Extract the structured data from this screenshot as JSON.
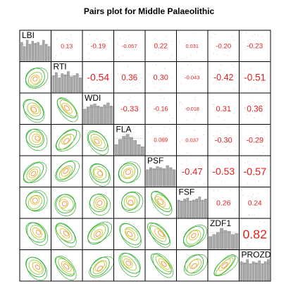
{
  "title": "Pairs plot for Middle Palaeolithic",
  "chart_data": {
    "type": "pairs",
    "variables": [
      "LBI",
      "RTI",
      "WDI",
      "FLA",
      "PSF",
      "FSF",
      "ZDF1",
      "PROZD"
    ],
    "upper_correlations": [
      {
        "row": 0,
        "col": 1,
        "value": "0.13"
      },
      {
        "row": 0,
        "col": 2,
        "value": "-0.19"
      },
      {
        "row": 0,
        "col": 3,
        "value": "-0.057"
      },
      {
        "row": 0,
        "col": 4,
        "value": "0.22"
      },
      {
        "row": 0,
        "col": 5,
        "value": "0.031"
      },
      {
        "row": 0,
        "col": 6,
        "value": "-0.20"
      },
      {
        "row": 0,
        "col": 7,
        "value": "-0.23"
      },
      {
        "row": 1,
        "col": 2,
        "value": "-0.54"
      },
      {
        "row": 1,
        "col": 3,
        "value": "0.36"
      },
      {
        "row": 1,
        "col": 4,
        "value": "0.30"
      },
      {
        "row": 1,
        "col": 5,
        "value": "-0.043"
      },
      {
        "row": 1,
        "col": 6,
        "value": "-0.42"
      },
      {
        "row": 1,
        "col": 7,
        "value": "-0.51"
      },
      {
        "row": 2,
        "col": 3,
        "value": "-0.33"
      },
      {
        "row": 2,
        "col": 4,
        "value": "-0.16"
      },
      {
        "row": 2,
        "col": 5,
        "value": "-0.018"
      },
      {
        "row": 2,
        "col": 6,
        "value": "0.31"
      },
      {
        "row": 2,
        "col": 7,
        "value": "0.36"
      },
      {
        "row": 3,
        "col": 4,
        "value": "0.069"
      },
      {
        "row": 3,
        "col": 5,
        "value": "0.037"
      },
      {
        "row": 3,
        "col": 6,
        "value": "-0.30"
      },
      {
        "row": 3,
        "col": 7,
        "value": "-0.29"
      },
      {
        "row": 4,
        "col": 5,
        "value": "-0.47"
      },
      {
        "row": 4,
        "col": 6,
        "value": "-0.53"
      },
      {
        "row": 4,
        "col": 7,
        "value": "-0.57"
      },
      {
        "row": 5,
        "col": 6,
        "value": "0.26"
      },
      {
        "row": 5,
        "col": 7,
        "value": "0.24"
      },
      {
        "row": 6,
        "col": 7,
        "value": "0.82"
      }
    ],
    "diagonal_histograms": [
      [
        0.9,
        0.7,
        1.0,
        0.8,
        0.95,
        0.85,
        0.9,
        0.75,
        1.0,
        0.8,
        0.7
      ],
      [
        0.8,
        0.95,
        0.7,
        0.9,
        0.85,
        1.0,
        0.75,
        0.8,
        0.9,
        0.7
      ],
      [
        0.7,
        0.8,
        0.9,
        0.95,
        0.85,
        0.8,
        0.9,
        1.0,
        0.85
      ],
      [
        0.5,
        0.75,
        0.9,
        1.0,
        0.85,
        0.7,
        0.5,
        0.4
      ],
      [
        0.8,
        0.9,
        0.85,
        0.95,
        0.9,
        0.85,
        1.0,
        0.9,
        0.8
      ],
      [
        0.85,
        0.8,
        0.9,
        0.95,
        0.8,
        0.85,
        0.9,
        1.0,
        0.85,
        0.9
      ],
      [
        0.6,
        0.7,
        0.8,
        1.0,
        0.9,
        0.85,
        0.7,
        0.75
      ],
      [
        0.9,
        0.85,
        1.0,
        0.8,
        0.9,
        0.85,
        0.95,
        0.8,
        0.9,
        1.0
      ]
    ],
    "lower_panel": "density contours",
    "contour_colors": [
      "#35b035",
      "#90d040",
      "#e0c030",
      "#f09040"
    ],
    "correlation_color": "#e02020",
    "histogram_color": "#aaaaaa"
  }
}
